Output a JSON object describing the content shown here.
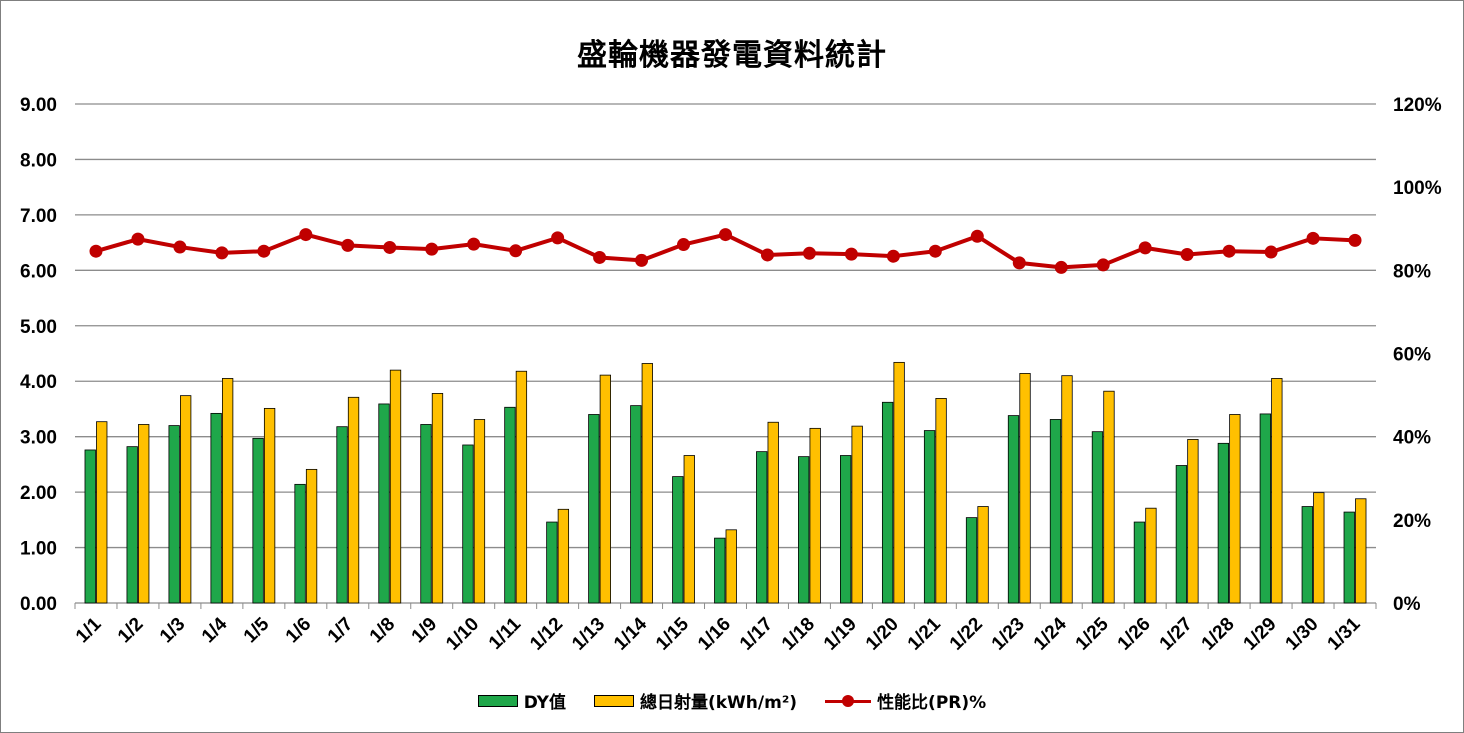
{
  "chart_data": {
    "type": "bar",
    "title": "盛輪機器發電資料統計",
    "categories": [
      "1/1",
      "1/2",
      "1/3",
      "1/4",
      "1/5",
      "1/6",
      "1/7",
      "1/8",
      "1/9",
      "1/10",
      "1/11",
      "1/12",
      "1/13",
      "1/14",
      "1/15",
      "1/16",
      "1/17",
      "1/18",
      "1/19",
      "1/20",
      "1/21",
      "1/22",
      "1/23",
      "1/24",
      "1/25",
      "1/26",
      "1/27",
      "1/28",
      "1/29",
      "1/30",
      "1/31"
    ],
    "series": [
      {
        "name": "DY值",
        "type": "bar",
        "axis": "left",
        "color": "#1fa74a",
        "values": [
          2.76,
          2.82,
          3.2,
          3.42,
          2.97,
          2.14,
          3.18,
          3.59,
          3.22,
          2.85,
          3.53,
          1.46,
          3.4,
          3.56,
          2.28,
          1.17,
          2.73,
          2.64,
          2.66,
          3.62,
          3.11,
          1.54,
          3.38,
          3.31,
          3.09,
          1.46,
          2.48,
          2.88,
          3.41,
          1.74,
          1.64
        ]
      },
      {
        "name": "總日射量(kWh/m²)",
        "type": "bar",
        "axis": "left",
        "color": "#ffc000",
        "values": [
          3.27,
          3.22,
          3.74,
          4.05,
          3.51,
          2.41,
          3.71,
          4.2,
          3.78,
          3.31,
          4.18,
          1.69,
          4.11,
          4.32,
          2.66,
          1.32,
          3.26,
          3.15,
          3.19,
          4.34,
          3.69,
          1.74,
          4.14,
          4.1,
          3.82,
          1.71,
          2.95,
          3.4,
          4.05,
          1.99,
          1.88
        ]
      },
      {
        "name": "性能比(PR)%",
        "type": "line",
        "axis": "right",
        "color": "#c00000",
        "values": [
          84.6,
          87.5,
          85.6,
          84.2,
          84.6,
          88.6,
          86.0,
          85.5,
          85.1,
          86.3,
          84.7,
          87.8,
          83.1,
          82.4,
          86.2,
          88.6,
          83.7,
          84.1,
          83.9,
          83.4,
          84.6,
          88.2,
          81.8,
          80.7,
          81.3,
          85.4,
          83.8,
          84.6,
          84.4,
          87.7,
          87.2
        ]
      }
    ],
    "y_left": {
      "min": 0,
      "max": 9,
      "step": 1,
      "tick_labels": [
        "0.00",
        "1.00",
        "2.00",
        "3.00",
        "4.00",
        "5.00",
        "6.00",
        "7.00",
        "8.00",
        "9.00"
      ]
    },
    "y_right": {
      "min": 0,
      "max": 120,
      "step": 20,
      "tick_labels": [
        "0%",
        "20%",
        "40%",
        "60%",
        "80%",
        "100%",
        "120%"
      ]
    },
    "grid": true,
    "legend_position": "bottom"
  },
  "legend": {
    "dy": "DY值",
    "irr": "總日射量(kWh/m²)",
    "pr": "性能比(PR)%"
  }
}
